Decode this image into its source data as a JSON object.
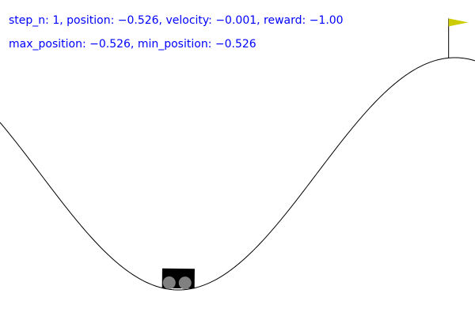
{
  "hud": {
    "line1": "step_n: 1, position: −0.526, velocity: −0.001, reward: −1.00",
    "line2": "max_position: −0.526, min_position: −0.526"
  },
  "env": {
    "position": -0.526,
    "min_position": -1.2,
    "max_position": 0.6,
    "goal_position": 0.5
  },
  "colors": {
    "hud_text": "#0000ff",
    "track": "#000000",
    "cart": "#000000",
    "wheel": "#808080",
    "flag": "#cccc00",
    "flagpole": "#000000",
    "background": "#ffffff"
  }
}
